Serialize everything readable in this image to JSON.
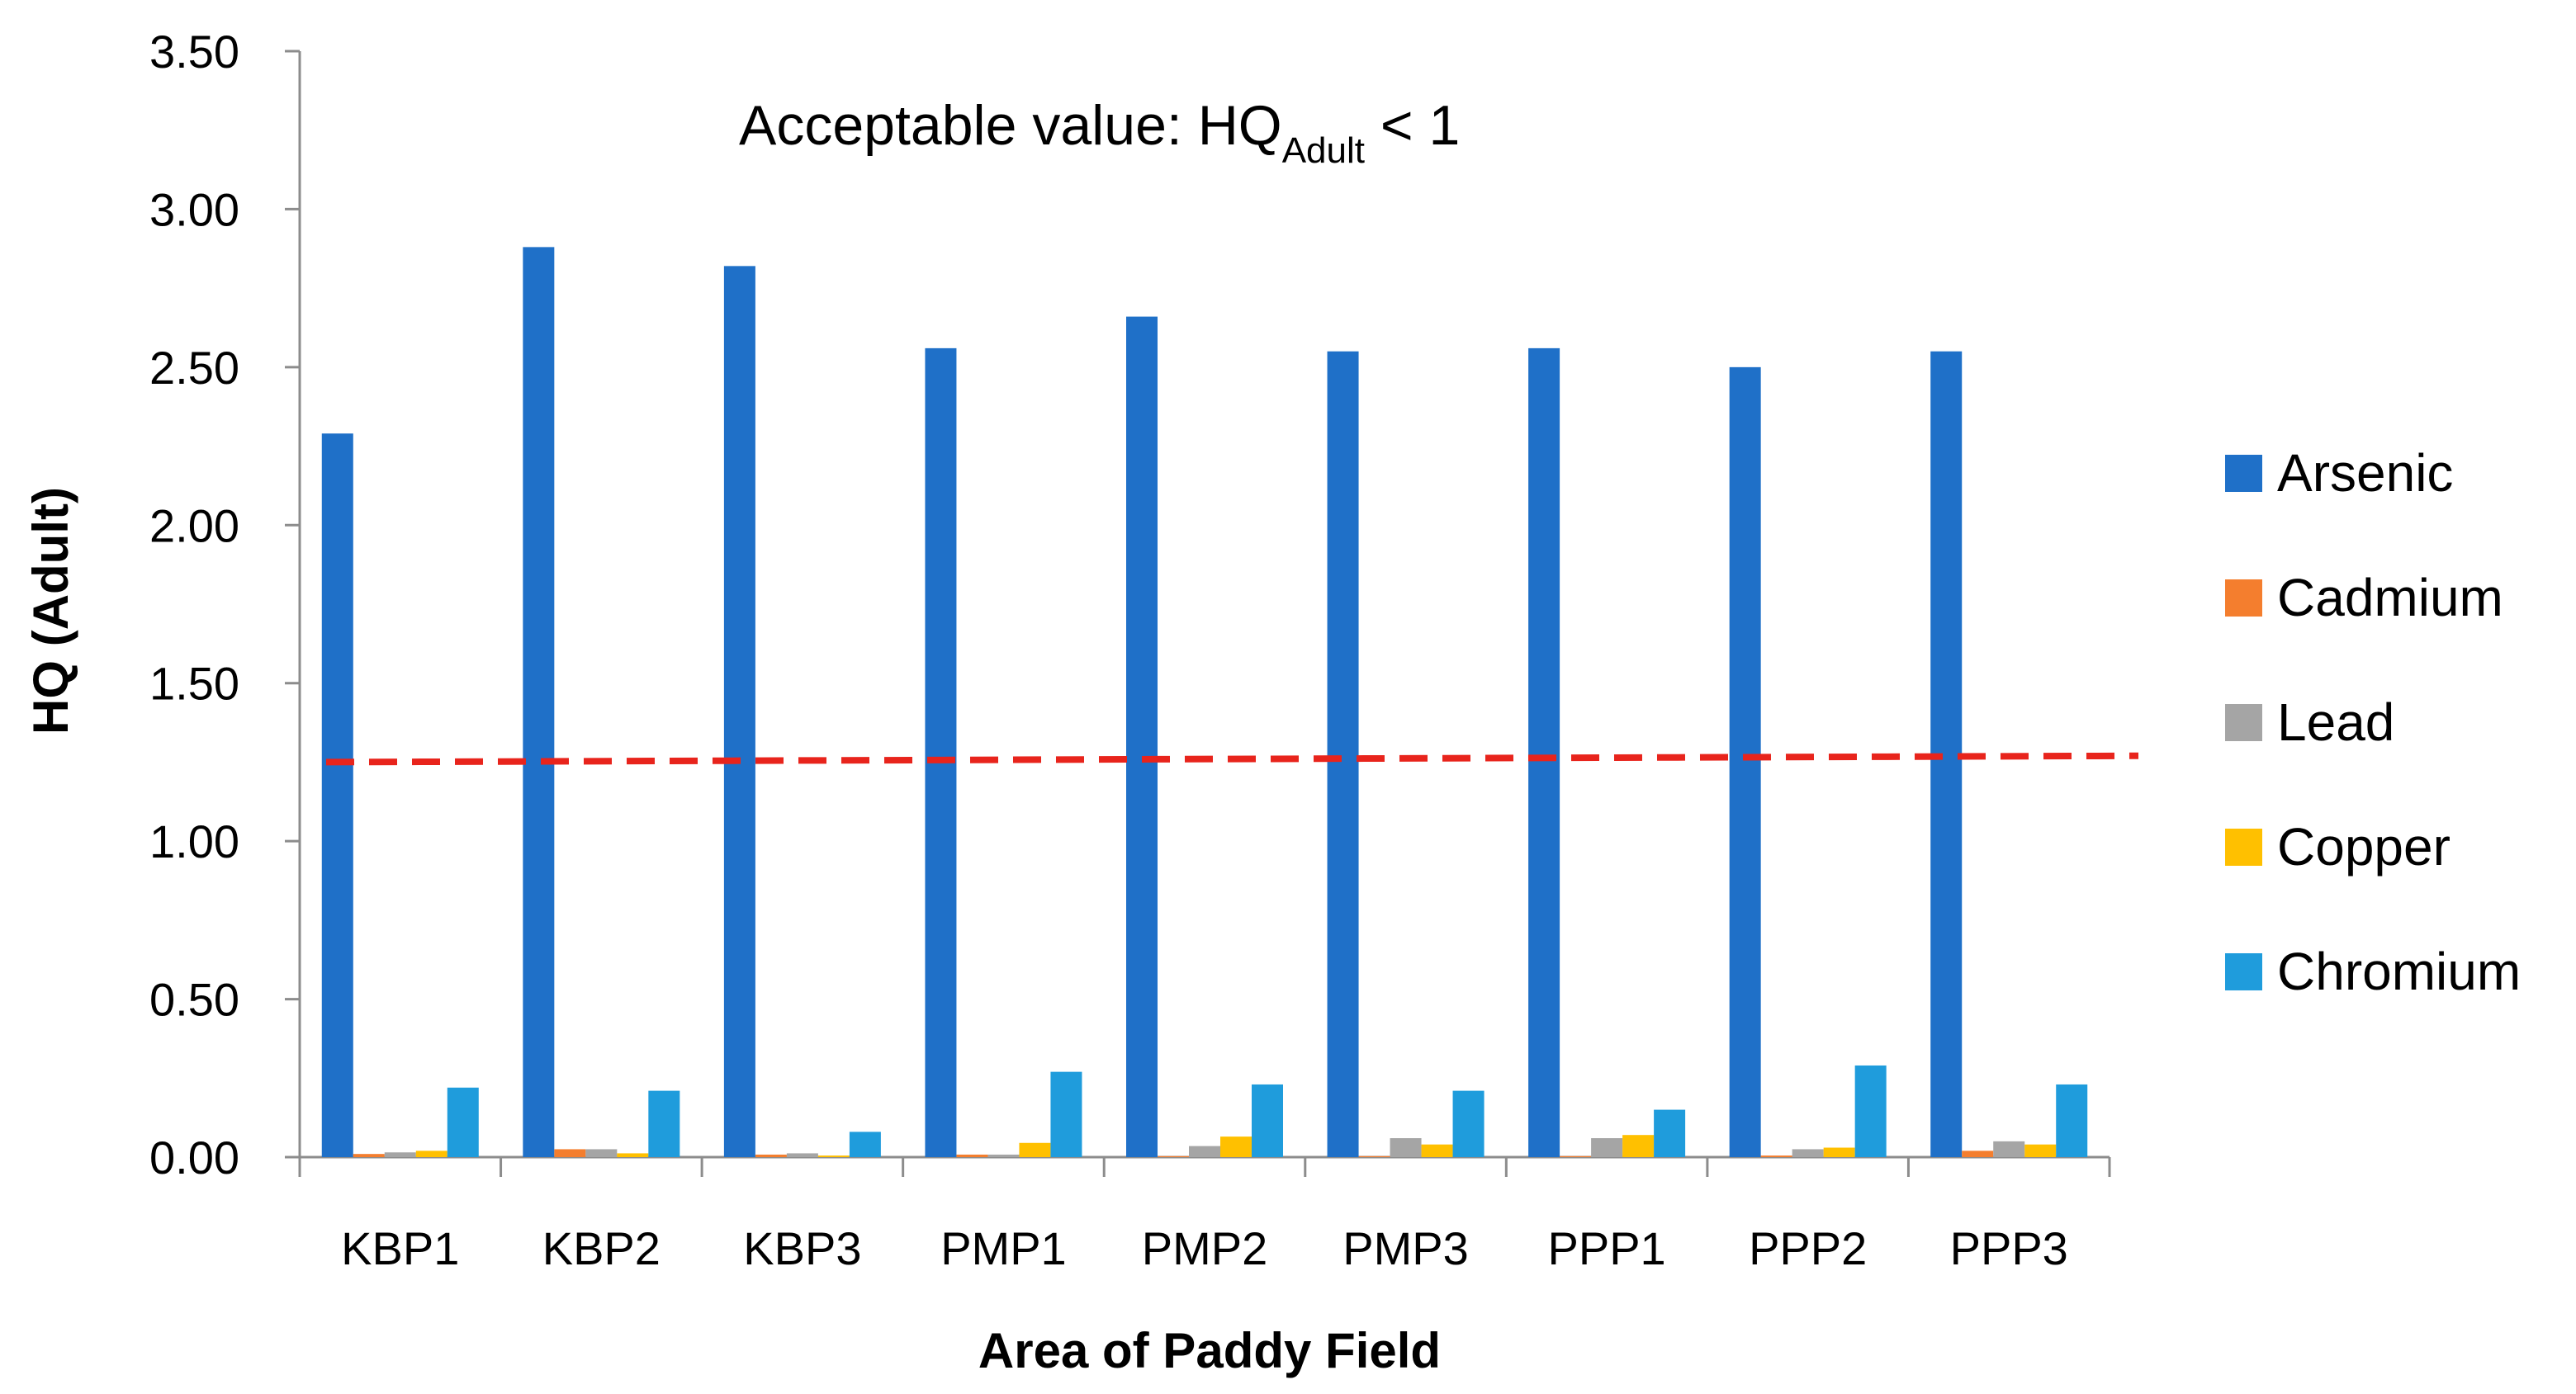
{
  "chart_data": {
    "type": "bar",
    "title": "",
    "xlabel": "Area of Paddy Field",
    "ylabel": "HQ (Adult)",
    "ylim": [
      0,
      3.5
    ],
    "yticks": [
      "0.00",
      "0.50",
      "1.00",
      "1.50",
      "2.00",
      "2.50",
      "3.00",
      "3.50"
    ],
    "categories": [
      "KBP1",
      "KBP2",
      "KBP3",
      "PMP1",
      "PMP2",
      "PMP3",
      "PPP1",
      "PPP2",
      "PPP3"
    ],
    "series": [
      {
        "name": "Arsenic",
        "color": "#1F70C8",
        "values": [
          2.29,
          2.88,
          2.82,
          2.56,
          2.66,
          2.55,
          2.56,
          2.5,
          2.55
        ]
      },
      {
        "name": "Cadmium",
        "color": "#F47E2E",
        "values": [
          0.01,
          0.025,
          0.008,
          0.008,
          0.003,
          0.003,
          0.003,
          0.005,
          0.02
        ]
      },
      {
        "name": "Lead",
        "color": "#A5A5A5",
        "values": [
          0.015,
          0.025,
          0.012,
          0.008,
          0.035,
          0.06,
          0.06,
          0.025,
          0.05
        ]
      },
      {
        "name": "Copper",
        "color": "#FFC000",
        "values": [
          0.02,
          0.012,
          0.005,
          0.045,
          0.065,
          0.04,
          0.07,
          0.03,
          0.04
        ]
      },
      {
        "name": "Chromium",
        "color": "#1F9CDC",
        "values": [
          0.22,
          0.21,
          0.08,
          0.27,
          0.23,
          0.21,
          0.15,
          0.29,
          0.23
        ]
      }
    ],
    "reference_line": {
      "color": "#E8241C",
      "style": "dashed",
      "start_value": 1.25,
      "end_value": 1.27
    },
    "annotation": {
      "text": "Acceptable value: HQ",
      "subscript": "Adult",
      "suffix": " < 1"
    },
    "legend_position": "right"
  }
}
